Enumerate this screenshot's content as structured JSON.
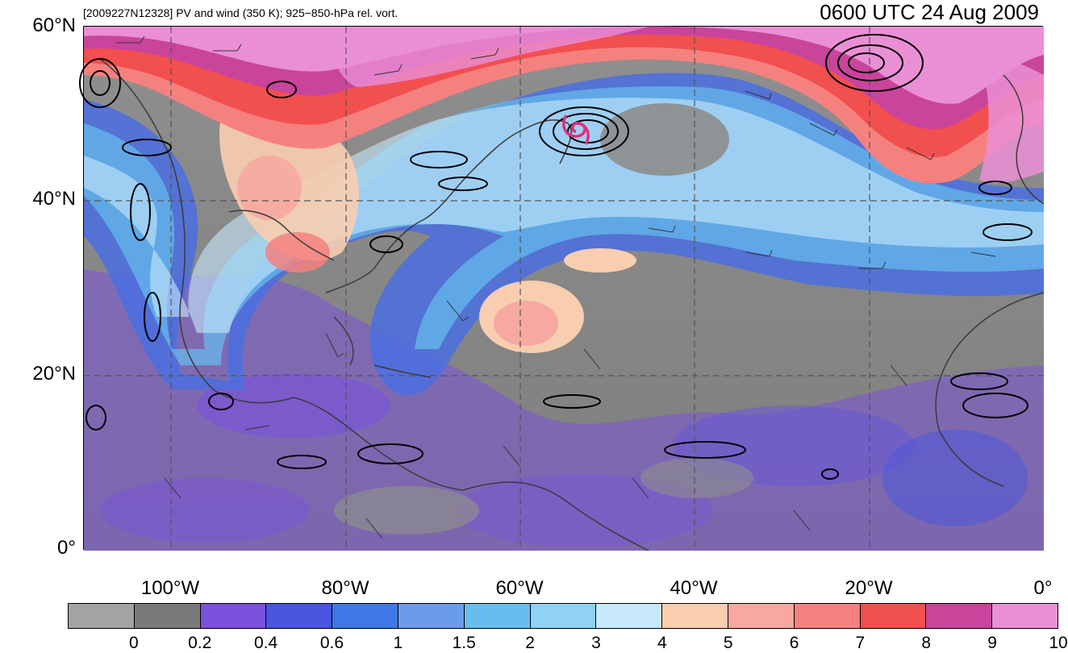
{
  "map": {
    "subtitle": "[2009227N12328] PV and wind (350 K); 925−850-hPa rel. vort.",
    "time": "0600 UTC 24 Aug 2009",
    "lat_labels": [
      "60°N",
      "40°N",
      "20°N",
      "0°"
    ],
    "lon_labels": [
      "100°W",
      "80°W",
      "60°W",
      "40°W",
      "20°W",
      "0°"
    ],
    "storm_symbol": "tropical-cyclone-symbol",
    "storm_color": "#e0307a",
    "colorbar": {
      "colors": [
        "#a3a3a3",
        "#7a7a7a",
        "#7a52dd",
        "#4a55e0",
        "#3f78e5",
        "#6b9cec",
        "#66bdee",
        "#8fd2f4",
        "#c7e9fb",
        "#f8cdb0",
        "#f7a8a0",
        "#f5817f",
        "#f24f4f",
        "#c9449b",
        "#ea8fd6"
      ],
      "tick_labels": [
        "0",
        "0.2",
        "0.4",
        "0.6",
        "1",
        "1.5",
        "2",
        "3",
        "4",
        "5",
        "6",
        "7",
        "8",
        "9",
        "10"
      ]
    }
  }
}
